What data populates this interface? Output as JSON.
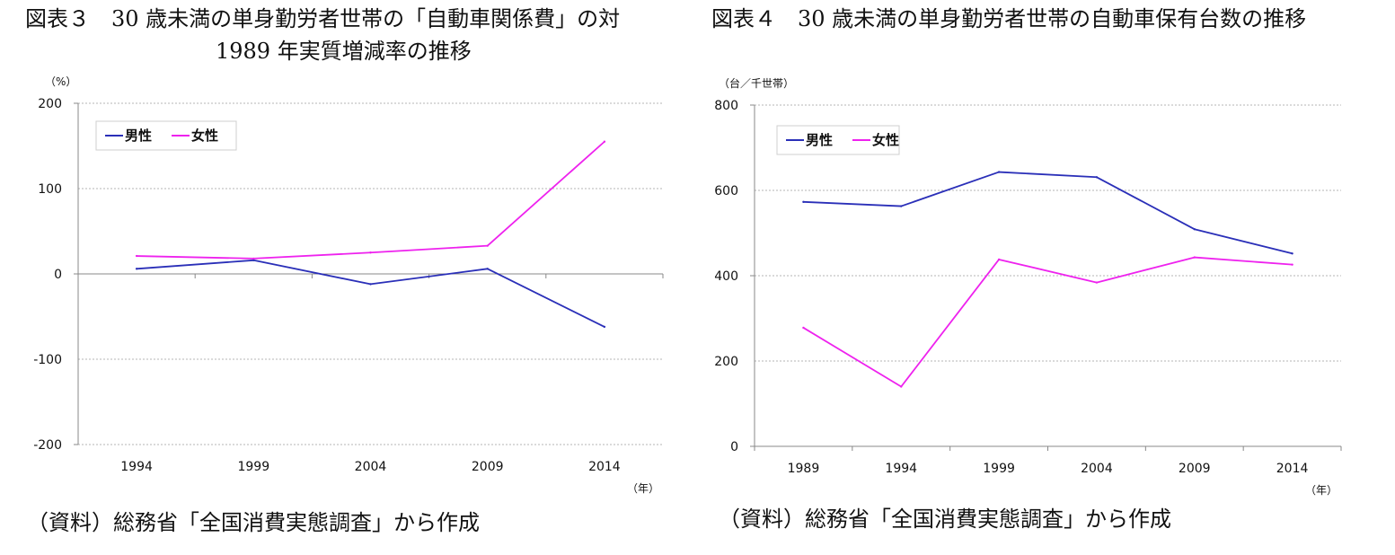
{
  "figures": [
    {
      "title_line1": "図表３　30 歳未満の単身勤労者世帯の「自動車関係費」の対",
      "title_line2": "1989 年実質増減率の推移",
      "source": "（資料）総務省「全国消費実態調査」から作成"
    },
    {
      "title_line1": "図表４　30 歳未満の単身勤労者世帯の自動車保有台数の推移",
      "title_line2": "",
      "source": "（資料）総務省「全国消費実態調査」から作成"
    }
  ],
  "chart_data": [
    {
      "type": "line",
      "title": "",
      "ylabel": "（%）",
      "xlabel": "（年）",
      "x": [
        "1994",
        "1999",
        "2004",
        "2009",
        "2014"
      ],
      "ylim": [
        -200,
        200
      ],
      "yticks": [
        200,
        100,
        0,
        -100,
        -200
      ],
      "grid": true,
      "legend_position": "top-left",
      "series": [
        {
          "name": "男性",
          "color": "#2a2fb8",
          "values": [
            6,
            16,
            -12,
            6,
            -62
          ]
        },
        {
          "name": "女性",
          "color": "#ee22ee",
          "values": [
            21,
            18,
            25,
            33,
            155
          ]
        }
      ]
    },
    {
      "type": "line",
      "title": "",
      "ylabel": "（台／千世帯）",
      "xlabel": "（年）",
      "x": [
        "1989",
        "1994",
        "1999",
        "2004",
        "2009",
        "2014"
      ],
      "ylim": [
        0,
        800
      ],
      "yticks": [
        800,
        600,
        400,
        200,
        0
      ],
      "grid": true,
      "legend_position": "top-left",
      "series": [
        {
          "name": "男性",
          "color": "#2a2fb8",
          "values": [
            573,
            563,
            643,
            631,
            509,
            452
          ]
        },
        {
          "name": "女性",
          "color": "#ee22ee",
          "values": [
            278,
            140,
            438,
            384,
            443,
            426
          ]
        }
      ]
    }
  ]
}
